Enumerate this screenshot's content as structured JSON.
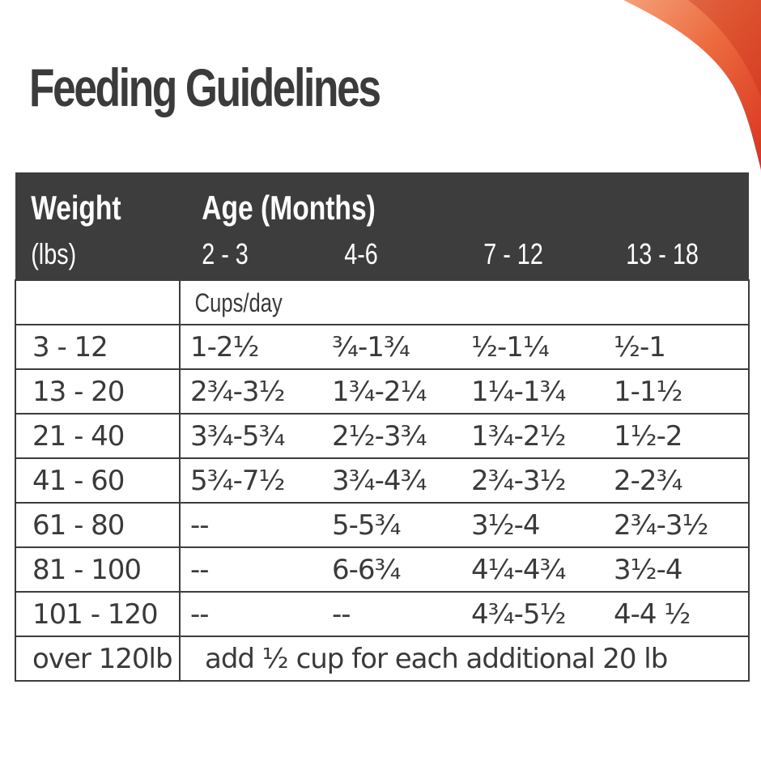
{
  "title": "Feeding Guidelines",
  "colors": {
    "header_bg": "#3d3d3d",
    "text": "#3a3a3a",
    "accent": "#e8462b"
  },
  "table": {
    "weight_header": "Weight",
    "weight_unit": "(lbs)",
    "age_header": "Age (Months)",
    "age_columns": [
      "2 - 3",
      "4-6",
      "7 - 12",
      "13 - 18"
    ],
    "units_label": "Cups/day",
    "rows": [
      {
        "weight": "3 - 12",
        "amounts": [
          "1-2½",
          "¾-1¾",
          "½-1¼",
          "½-1"
        ]
      },
      {
        "weight": "13 - 20",
        "amounts": [
          "2¾-3½",
          "1¾-2¼",
          "1¼-1¾",
          "1-1½"
        ]
      },
      {
        "weight": "21 - 40",
        "amounts": [
          "3¾-5¾",
          "2½-3¾",
          "1¾-2½",
          "1½-2"
        ]
      },
      {
        "weight": "41 - 60",
        "amounts": [
          "5¾-7½",
          "3¾-4¾",
          "2¾-3½",
          "2-2¾"
        ]
      },
      {
        "weight": "61 - 80",
        "amounts": [
          "--",
          "5-5¾",
          "3½-4",
          "2¾-3½"
        ]
      },
      {
        "weight": "81 - 100",
        "amounts": [
          "--",
          "6-6¾",
          "4¼-4¾",
          "3½-4"
        ]
      },
      {
        "weight": "101 - 120",
        "amounts": [
          "--",
          "--",
          "4¾-5½",
          "4-4 ½"
        ]
      }
    ],
    "note_row": {
      "weight": "over 120lb",
      "text": "add ½ cup for each additional 20 lb"
    }
  }
}
